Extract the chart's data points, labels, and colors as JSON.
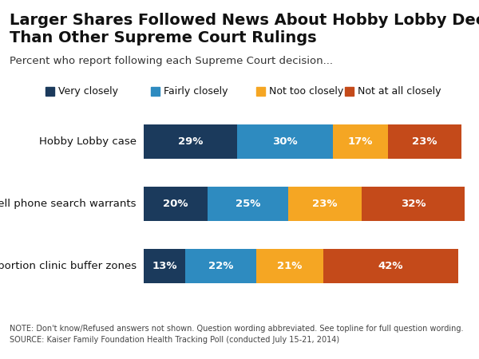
{
  "title_line1": "Larger Shares Followed News About Hobby Lobby Decision",
  "title_line2": "Than Other Supreme Court Rulings",
  "subtitle": "Percent who report following each Supreme Court decision...",
  "categories": [
    "Hobby Lobby case",
    "Cell phone search warrants",
    "Abortion clinic buffer zones"
  ],
  "series": {
    "Very closely": [
      29,
      20,
      13
    ],
    "Fairly closely": [
      30,
      25,
      22
    ],
    "Not too closely": [
      17,
      23,
      21
    ],
    "Not at all closely": [
      23,
      32,
      42
    ]
  },
  "colors": {
    "Very closely": "#1b3a5c",
    "Fairly closely": "#2e8bc0",
    "Not too closely": "#f5a623",
    "Not at all closely": "#c44a1a"
  },
  "note_line1": "NOTE: Don't know/Refused answers not shown. Question wording abbreviated. See topline for full question wording.",
  "note_line2": "SOURCE: Kaiser Family Foundation Health Tracking Poll (conducted July 15-21, 2014)",
  "background_color": "#ffffff",
  "title_fontsize": 14,
  "subtitle_fontsize": 9.5,
  "legend_fontsize": 9,
  "label_fontsize": 9.5,
  "note_fontsize": 7,
  "category_fontsize": 9.5
}
